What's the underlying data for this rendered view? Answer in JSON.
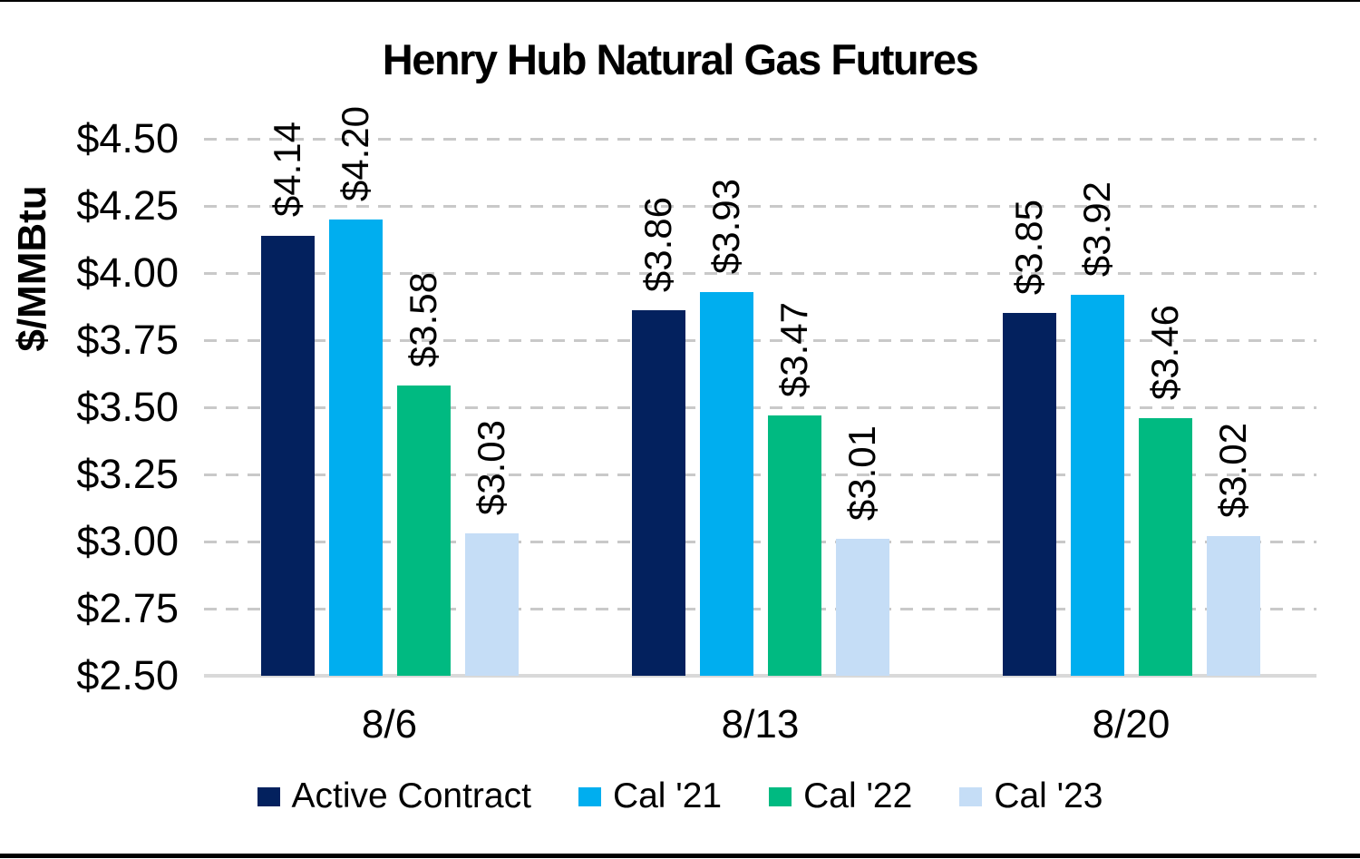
{
  "chart_data": {
    "type": "bar",
    "title": "Henry Hub Natural Gas Futures",
    "ylabel": "$/MMBtu",
    "xlabel": "",
    "categories": [
      "8/6",
      "8/13",
      "8/20"
    ],
    "series": [
      {
        "name": "Active Contract",
        "color": "#03215E",
        "values": [
          4.14,
          3.86,
          3.85
        ],
        "labels": [
          "$4.14",
          "$3.86",
          "$3.85"
        ]
      },
      {
        "name": "Cal '21",
        "color": "#00AEEF",
        "values": [
          4.2,
          3.93,
          3.92
        ],
        "labels": [
          "$4.20",
          "$3.93",
          "$3.92"
        ]
      },
      {
        "name": "Cal '22",
        "color": "#00BA81",
        "values": [
          3.58,
          3.47,
          3.46
        ],
        "labels": [
          "$3.58",
          "$3.47",
          "$3.46"
        ]
      },
      {
        "name": "Cal '23",
        "color": "#C5DDF6",
        "values": [
          3.03,
          3.01,
          3.02
        ],
        "labels": [
          "$3.03",
          "$3.01",
          "$3.02"
        ]
      }
    ],
    "y_axis": {
      "min": 2.5,
      "max": 4.5,
      "step": 0.25,
      "tick_labels": [
        "$4.50",
        "$4.25",
        "$4.00",
        "$3.75",
        "$3.50",
        "$3.25",
        "$3.00",
        "$2.75",
        "$2.50"
      ]
    },
    "grid": "horizontal-dashed",
    "legend_position": "bottom",
    "colors": {
      "gridline": "#C9C9C9",
      "axis_line": "#D9D9D9",
      "text": "#000000",
      "background": "#FFFFFF"
    }
  }
}
